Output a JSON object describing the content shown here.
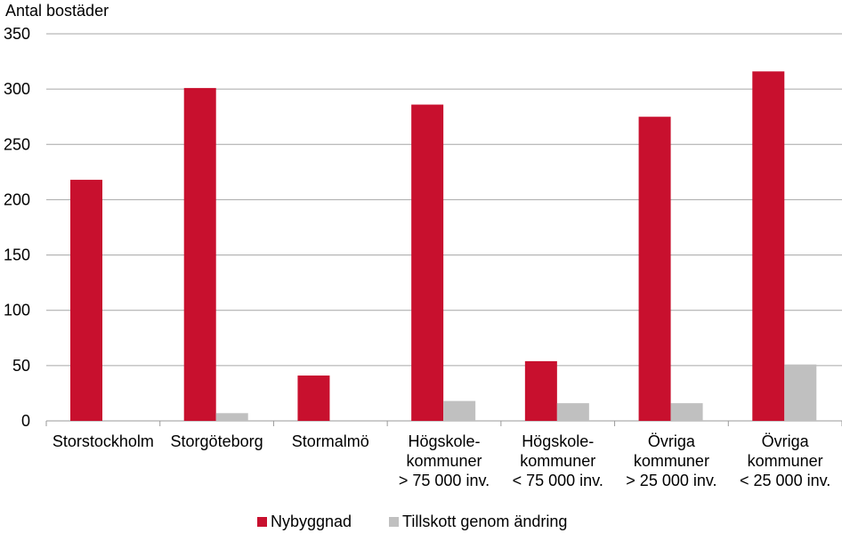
{
  "chart_data": {
    "type": "bar",
    "title": "",
    "ylabel": "Antal bostäder",
    "xlabel": "",
    "ylim": [
      0,
      350
    ],
    "yticks": [
      0,
      50,
      100,
      150,
      200,
      250,
      300,
      350
    ],
    "grid": true,
    "legend_position": "bottom",
    "categories": [
      [
        "Storstockholm"
      ],
      [
        "Storgöteborg"
      ],
      [
        "Stormalmö"
      ],
      [
        "Högskole-",
        "kommuner",
        "> 75 000 inv."
      ],
      [
        "Högskole-",
        "kommuner",
        "< 75 000 inv."
      ],
      [
        "Övriga",
        "kommuner",
        "> 25 000 inv."
      ],
      [
        "Övriga",
        "kommuner",
        "< 25 000 inv."
      ]
    ],
    "series": [
      {
        "name": "Nybyggnad",
        "color": "#c8102e",
        "values": [
          218,
          301,
          41,
          286,
          54,
          275,
          316
        ]
      },
      {
        "name": "Tillskott genom ändring",
        "color": "#c0c0c0",
        "values": [
          0,
          7,
          0,
          18,
          16,
          16,
          51
        ]
      }
    ]
  }
}
